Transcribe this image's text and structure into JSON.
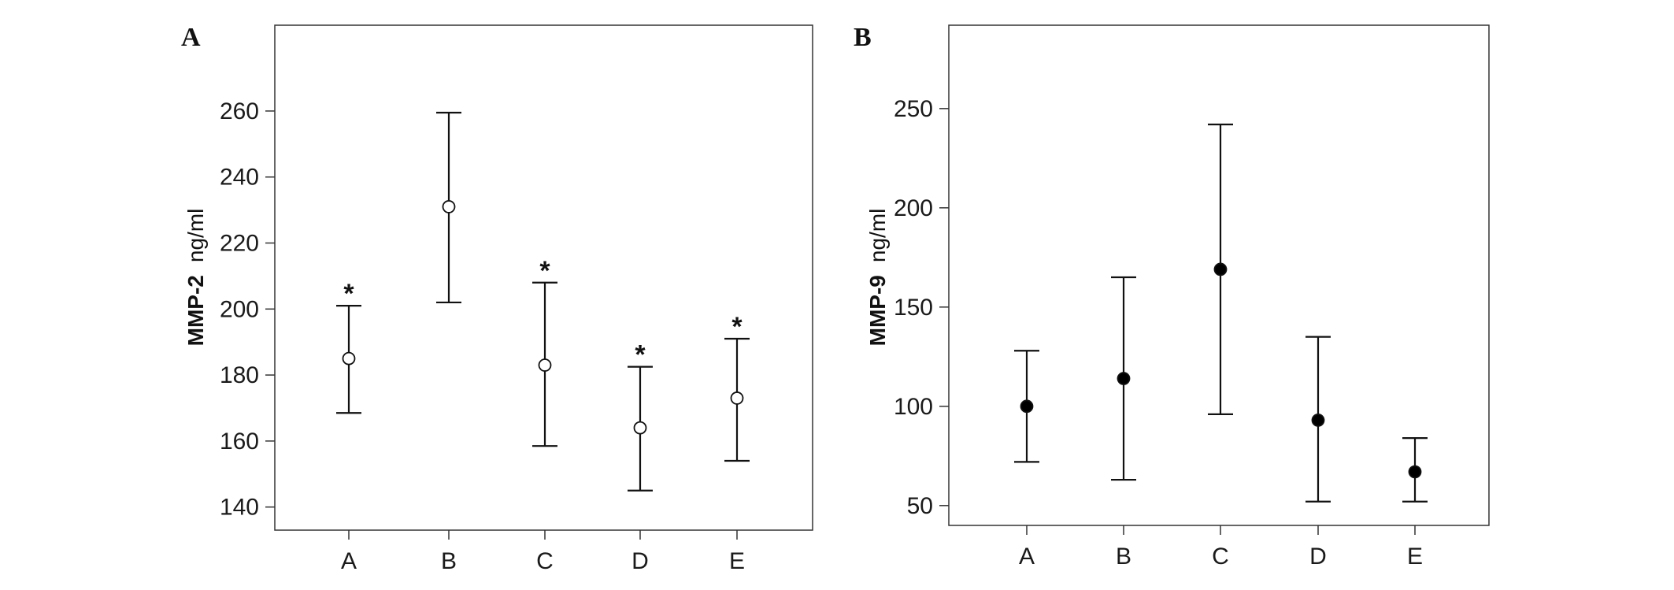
{
  "chart_data": [
    {
      "type": "errorbar",
      "panel_label": "A",
      "ylabel_main": "MMP-2",
      "ylabel_unit": "ng/ml",
      "categories": [
        "A",
        "B",
        "C",
        "D",
        "E"
      ],
      "yticks": [
        140,
        160,
        180,
        200,
        220,
        240,
        260
      ],
      "ylim": [
        133,
        286
      ],
      "marker": "open-circle",
      "series": [
        {
          "values": [
            185,
            231,
            183,
            164,
            173
          ],
          "lower": [
            168.5,
            202,
            158.5,
            145,
            154
          ],
          "upper": [
            201,
            259.5,
            208,
            182.5,
            191
          ],
          "significance": [
            "*",
            "",
            "*",
            "*",
            "*"
          ]
        }
      ]
    },
    {
      "type": "errorbar",
      "panel_label": "B",
      "ylabel_main": "MMP-9",
      "ylabel_unit": "ng/ml",
      "categories": [
        "A",
        "B",
        "C",
        "D",
        "E"
      ],
      "yticks": [
        50,
        100,
        150,
        200,
        250
      ],
      "ylim": [
        40,
        292
      ],
      "marker": "filled-circle",
      "series": [
        {
          "values": [
            100,
            114,
            169,
            93,
            67
          ],
          "lower": [
            72,
            63,
            96,
            52,
            52
          ],
          "upper": [
            128,
            165,
            242,
            135,
            84
          ],
          "significance": [
            "",
            "",
            "",
            "",
            ""
          ]
        }
      ]
    }
  ]
}
